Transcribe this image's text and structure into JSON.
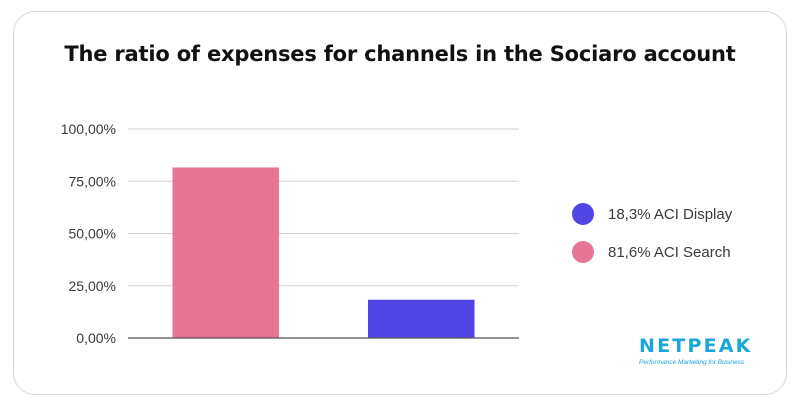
{
  "chart_data": {
    "type": "bar",
    "title": "The ratio of expenses for channels in the Sociaro account",
    "xlabel": "",
    "ylabel": "",
    "categories": [
      "ACI Search",
      "ACI Display"
    ],
    "values": [
      81.6,
      18.3
    ],
    "bar_colors": [
      "#e97596",
      "#5145e6"
    ],
    "y_ticks": [
      "0,00%",
      "25,00%",
      "50,00%",
      "75,00%",
      "100,00%"
    ],
    "y_tick_values": [
      0,
      25,
      50,
      75,
      100
    ],
    "ylim": [
      0,
      100
    ],
    "grid": true,
    "legend_position": "right",
    "legend": [
      {
        "label": "18,3% ACI Display",
        "color": "#5145e6"
      },
      {
        "label": "81,6% ACI Search",
        "color": "#e97596"
      }
    ]
  },
  "brand": {
    "name": "NETPEAK",
    "tagline": "Performance Marketing for Business",
    "color": "#18a6dc"
  }
}
